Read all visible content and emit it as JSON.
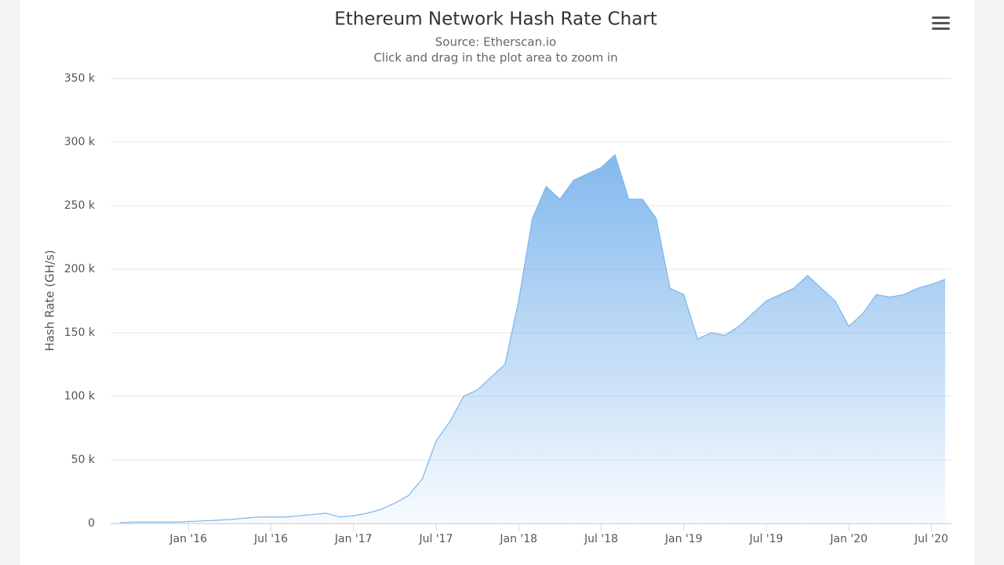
{
  "chart_data": {
    "type": "area",
    "title": "Ethereum Network Hash Rate Chart",
    "subtitle": "Source: Etherscan.io",
    "subtitle2": "Click and drag in the plot area to zoom in",
    "y_label": "Hash Rate (GH/s)",
    "color": "#7cb5ec",
    "grid": true,
    "x": [
      "2015-08",
      "2015-09",
      "2015-10",
      "2015-11",
      "2015-12",
      "2016-01",
      "2016-02",
      "2016-03",
      "2016-04",
      "2016-05",
      "2016-06",
      "2016-07",
      "2016-08",
      "2016-09",
      "2016-10",
      "2016-11",
      "2016-12",
      "2017-01",
      "2017-02",
      "2017-03",
      "2017-04",
      "2017-05",
      "2017-06",
      "2017-07",
      "2017-08",
      "2017-09",
      "2017-10",
      "2017-11",
      "2017-12",
      "2018-01",
      "2018-02",
      "2018-03",
      "2018-04",
      "2018-05",
      "2018-06",
      "2018-07",
      "2018-08",
      "2018-09",
      "2018-10",
      "2018-11",
      "2018-12",
      "2019-01",
      "2019-02",
      "2019-03",
      "2019-04",
      "2019-05",
      "2019-06",
      "2019-07",
      "2019-08",
      "2019-09",
      "2019-10",
      "2019-11",
      "2019-12",
      "2020-01",
      "2020-02",
      "2020-03",
      "2020-04",
      "2020-05",
      "2020-06",
      "2020-07",
      "2020-08"
    ],
    "values": [
      500,
      1000,
      1000,
      1000,
      1000,
      1500,
      2000,
      2500,
      3000,
      4000,
      5000,
      5000,
      5000,
      6000,
      7000,
      8000,
      5000,
      6000,
      8000,
      11000,
      16000,
      22000,
      35000,
      65000,
      80000,
      100000,
      105000,
      115000,
      125000,
      175000,
      240000,
      265000,
      255000,
      270000,
      275000,
      280000,
      290000,
      255000,
      255000,
      240000,
      185000,
      180000,
      145000,
      150000,
      148000,
      155000,
      165000,
      175000,
      180000,
      185000,
      195000,
      185000,
      175000,
      155000,
      165000,
      180000,
      178000,
      180000,
      185000,
      188000,
      192000
    ],
    "xlim": [
      "2015-07",
      "2020-08"
    ],
    "xticks": [
      {
        "value": "2016-01",
        "label": "Jan '16"
      },
      {
        "value": "2016-07",
        "label": "Jul '16"
      },
      {
        "value": "2017-01",
        "label": "Jan '17"
      },
      {
        "value": "2017-07",
        "label": "Jul '17"
      },
      {
        "value": "2018-01",
        "label": "Jan '18"
      },
      {
        "value": "2018-07",
        "label": "Jul '18"
      },
      {
        "value": "2019-01",
        "label": "Jan '19"
      },
      {
        "value": "2019-07",
        "label": "Jul '19"
      },
      {
        "value": "2020-01",
        "label": "Jan '20"
      },
      {
        "value": "2020-07",
        "label": "Jul '20"
      }
    ],
    "ylim": [
      0,
      350000
    ],
    "yticks": [
      0,
      {
        "value": 50000,
        "label": "50 k"
      },
      {
        "value": 100000,
        "label": "100 k"
      },
      {
        "value": 150000,
        "label": "150 k"
      },
      {
        "value": 200000,
        "label": "200 k"
      },
      {
        "value": 250000,
        "label": "250 k"
      },
      {
        "value": 300000,
        "label": "300 k"
      },
      {
        "value": 350000,
        "label": "350 k"
      }
    ]
  }
}
